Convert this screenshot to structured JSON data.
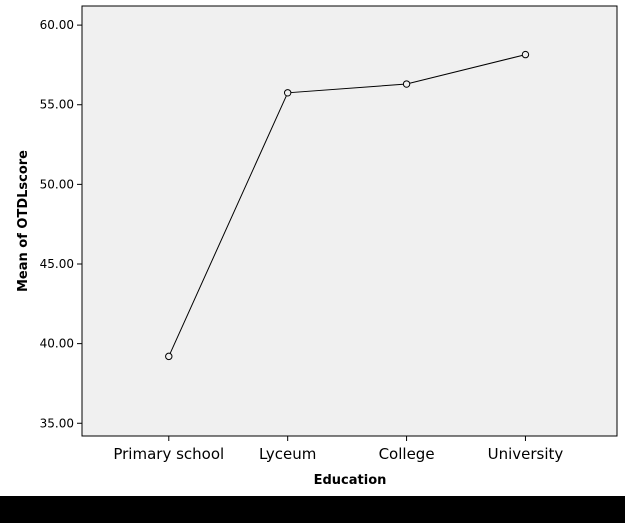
{
  "chart_data": {
    "type": "line",
    "categories": [
      "Primary school",
      "Lyceum",
      "College",
      "University"
    ],
    "series": [
      {
        "values": [
          39.2,
          55.75,
          56.3,
          58.15
        ]
      }
    ],
    "xlabel": "Education",
    "ylabel": "Mean of OTDLscore",
    "ylim": [
      34.2,
      61.2
    ],
    "yticks": [
      "35.00",
      "40.00",
      "45.00",
      "50.00",
      "55.00",
      "60.00"
    ],
    "grid": false,
    "plot_background": "#f0f0f0",
    "line_color": "#000000",
    "marker": "open-circle"
  }
}
